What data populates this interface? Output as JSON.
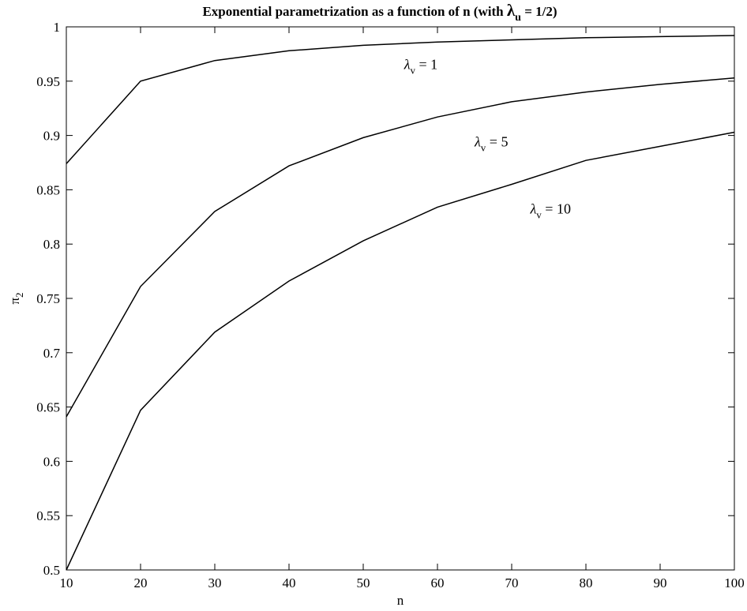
{
  "chart_data": {
    "type": "line",
    "title": {
      "prefix": "Exponential parametrization as a function of n (with ",
      "symbol": "λ",
      "subscript": "u",
      "suffix": " = 1/2)"
    },
    "xlabel": "n",
    "ylabel": {
      "symbol": "π",
      "subscript": "2"
    },
    "xlim": [
      10,
      100
    ],
    "ylim": [
      0.5,
      1
    ],
    "xticks": [
      10,
      20,
      30,
      40,
      50,
      60,
      70,
      80,
      90,
      100
    ],
    "yticks": [
      0.5,
      0.55,
      0.6,
      0.65,
      0.7,
      0.75,
      0.8,
      0.85,
      0.9,
      0.95,
      1
    ],
    "xtick_labels": [
      "10",
      "20",
      "30",
      "40",
      "50",
      "60",
      "70",
      "80",
      "90",
      "100"
    ],
    "ytick_labels": [
      "0.5",
      "0.55",
      "0.6",
      "0.65",
      "0.7",
      "0.75",
      "0.8",
      "0.85",
      "0.9",
      "0.95",
      "1"
    ],
    "x": [
      10,
      20,
      30,
      40,
      50,
      60,
      70,
      80,
      90,
      100
    ],
    "grid": false,
    "line_color": "#000000",
    "series": [
      {
        "values": [
          0.874,
          0.95,
          0.969,
          0.978,
          0.983,
          0.986,
          0.988,
          0.99,
          0.991,
          0.992
        ]
      },
      {
        "values": [
          0.641,
          0.761,
          0.83,
          0.872,
          0.898,
          0.917,
          0.931,
          0.94,
          0.947,
          0.953
        ]
      },
      {
        "values": [
          0.5,
          0.647,
          0.719,
          0.766,
          0.803,
          0.834,
          0.855,
          0.877,
          0.89,
          0.903
        ]
      }
    ],
    "annotations": [
      {
        "symbol": "λ",
        "subscript": "v",
        "text": " = 1",
        "x": 55.5,
        "y": 0.961
      },
      {
        "symbol": "λ",
        "subscript": "v",
        "text": " = 5",
        "x": 65.0,
        "y": 0.89
      },
      {
        "symbol": "λ",
        "subscript": "v",
        "text": " = 10",
        "x": 72.5,
        "y": 0.828
      }
    ]
  }
}
